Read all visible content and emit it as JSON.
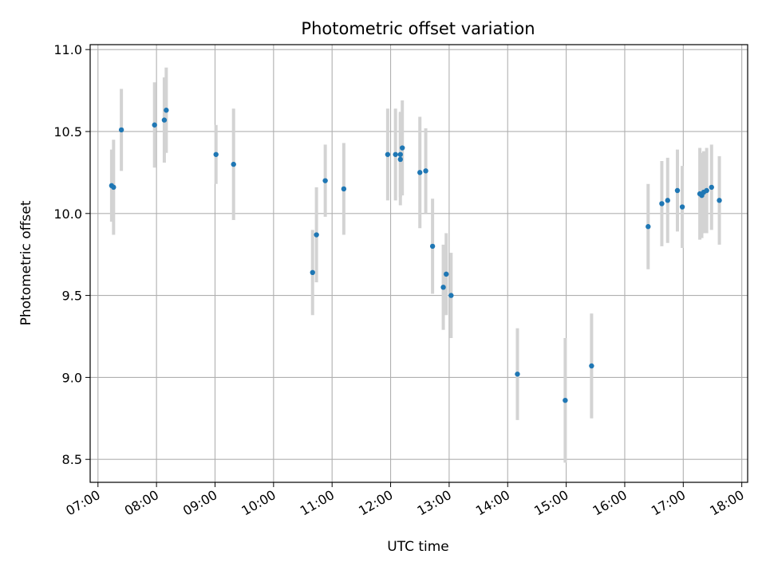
{
  "chart_data": {
    "type": "scatter",
    "title": "Photometric offset variation",
    "xlabel": "UTC time",
    "ylabel": "Photometric offset",
    "x_tick_labels": [
      "07:00",
      "08:00",
      "09:00",
      "10:00",
      "11:00",
      "12:00",
      "13:00",
      "14:00",
      "15:00",
      "16:00",
      "17:00",
      "18:00"
    ],
    "y_tick_labels": [
      "8.5",
      "9.0",
      "9.5",
      "10.0",
      "10.5",
      "11.0"
    ],
    "y_ticks": [
      8.5,
      9.0,
      9.5,
      10.0,
      10.5,
      11.0
    ],
    "xlim": [
      "06:52",
      "18:06"
    ],
    "ylim": [
      8.36,
      11.03
    ],
    "grid": true,
    "marker_color": "#1f77b4",
    "errorbar_color": "#d3d3d3",
    "points": [
      {
        "x": "07:14",
        "y": 10.17,
        "err": 0.22
      },
      {
        "x": "07:16",
        "y": 10.16,
        "err": 0.29
      },
      {
        "x": "07:24",
        "y": 10.51,
        "err": 0.25
      },
      {
        "x": "07:58",
        "y": 10.54,
        "err": 0.26
      },
      {
        "x": "08:08",
        "y": 10.57,
        "err": 0.26
      },
      {
        "x": "08:10",
        "y": 10.63,
        "err": 0.26
      },
      {
        "x": "09:01",
        "y": 10.36,
        "err": 0.18
      },
      {
        "x": "09:19",
        "y": 10.3,
        "err": 0.34
      },
      {
        "x": "10:40",
        "y": 9.64,
        "err": 0.26
      },
      {
        "x": "10:44",
        "y": 9.87,
        "err": 0.29
      },
      {
        "x": "10:53",
        "y": 10.2,
        "err": 0.22
      },
      {
        "x": "11:12",
        "y": 10.15,
        "err": 0.28
      },
      {
        "x": "11:57",
        "y": 10.36,
        "err": 0.28
      },
      {
        "x": "12:05",
        "y": 10.36,
        "err": 0.28
      },
      {
        "x": "12:10",
        "y": 10.36,
        "err": 0.26
      },
      {
        "x": "12:10",
        "y": 10.33,
        "err": 0.28
      },
      {
        "x": "12:12",
        "y": 10.4,
        "err": 0.29
      },
      {
        "x": "12:30",
        "y": 10.25,
        "err": 0.34
      },
      {
        "x": "12:36",
        "y": 10.26,
        "err": 0.26
      },
      {
        "x": "12:43",
        "y": 9.8,
        "err": 0.29
      },
      {
        "x": "12:54",
        "y": 9.55,
        "err": 0.26
      },
      {
        "x": "12:57",
        "y": 9.63,
        "err": 0.25
      },
      {
        "x": "13:02",
        "y": 9.5,
        "err": 0.26
      },
      {
        "x": "14:10",
        "y": 9.02,
        "err": 0.28
      },
      {
        "x": "14:59",
        "y": 8.86,
        "err": 0.38
      },
      {
        "x": "15:26",
        "y": 9.07,
        "err": 0.32
      },
      {
        "x": "16:24",
        "y": 9.92,
        "err": 0.26
      },
      {
        "x": "16:38",
        "y": 10.06,
        "err": 0.26
      },
      {
        "x": "16:44",
        "y": 10.08,
        "err": 0.26
      },
      {
        "x": "16:54",
        "y": 10.14,
        "err": 0.25
      },
      {
        "x": "16:59",
        "y": 10.04,
        "err": 0.25
      },
      {
        "x": "17:17",
        "y": 10.12,
        "err": 0.28
      },
      {
        "x": "17:19",
        "y": 10.11,
        "err": 0.26
      },
      {
        "x": "17:21",
        "y": 10.13,
        "err": 0.25
      },
      {
        "x": "17:24",
        "y": 10.14,
        "err": 0.26
      },
      {
        "x": "17:29",
        "y": 10.16,
        "err": 0.26
      },
      {
        "x": "17:37",
        "y": 10.08,
        "err": 0.27
      }
    ]
  }
}
